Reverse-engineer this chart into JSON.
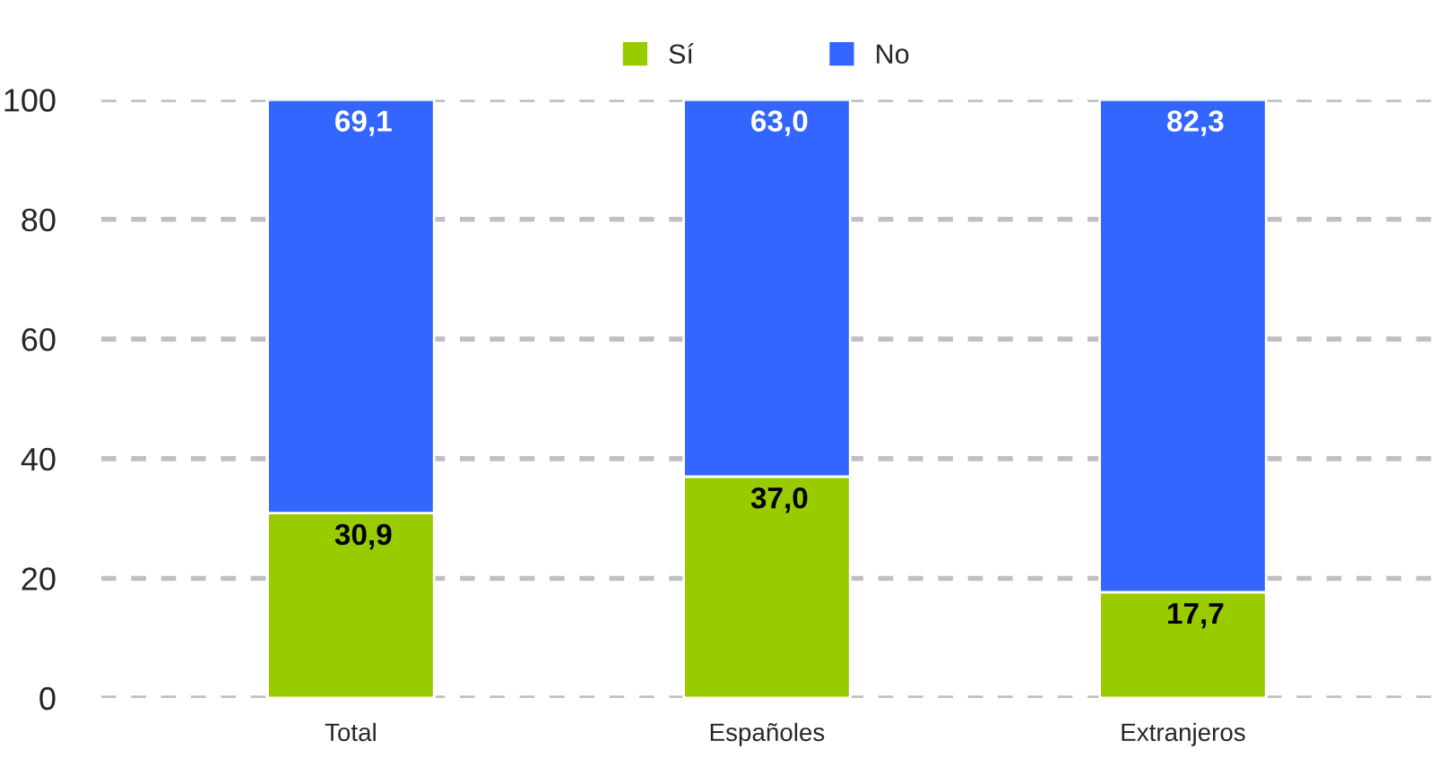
{
  "chart_data": {
    "type": "bar",
    "stacked": true,
    "categories": [
      "Total",
      "Españoles",
      "Extranjeros"
    ],
    "series": [
      {
        "name": "Sí",
        "color": "#99cc00",
        "values": [
          30.9,
          37.0,
          17.7
        ],
        "value_labels": [
          "30,9",
          "37,0",
          "17,7"
        ]
      },
      {
        "name": "No",
        "color": "#3366ff",
        "values": [
          69.1,
          63.0,
          82.3
        ],
        "value_labels": [
          "69,1",
          "63,0",
          "82,3"
        ]
      }
    ],
    "ylim": [
      0,
      100
    ],
    "yticks": [
      0,
      20,
      40,
      60,
      80,
      100
    ],
    "grid": "y",
    "legend": "top"
  }
}
